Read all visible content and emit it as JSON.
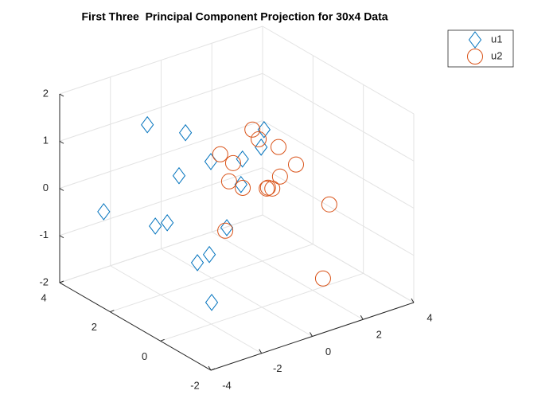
{
  "chart_data": {
    "type": "scatter3",
    "title": "First Three  Principal Component Projection for 30x4 Data",
    "xlim": [
      -4,
      4
    ],
    "xticks": [
      -4,
      -2,
      0,
      2,
      4
    ],
    "ylim": [
      -2,
      4
    ],
    "yticks": [
      -2,
      0,
      2,
      4
    ],
    "zlim": [
      -2,
      2
    ],
    "zticks": [
      -2,
      -1,
      0,
      1,
      2
    ],
    "grid": true,
    "legend_location": "northeastoutside",
    "series": [
      {
        "name": "u1",
        "color": "#0072BD",
        "marker": "diamond",
        "x": [
          -1.1,
          -0.49,
          -2.89,
          -1.49,
          -1.1,
          -0.2,
          0.59,
          -0.24,
          -0.32,
          -3.24,
          -2.8,
          -0.5,
          -1.73,
          -1.08,
          -2.07
        ],
        "y": [
          3.44,
          2.54,
          3.37,
          1.79,
          0.92,
          0.57,
          0.51,
          -0.21,
          0.51,
          0.97,
          0.94,
          0.89,
          0.82,
          1.0,
          -0.09
        ],
        "z": [
          1,
          1,
          -0.5,
          0.5,
          1,
          1,
          1.5,
          1.5,
          0.5,
          0,
          0,
          -0.5,
          -1,
          -1,
          -1.5
        ]
      },
      {
        "name": "u2",
        "color": "#D95319",
        "marker": "circle",
        "x": [
          0.3,
          0.04,
          1.22,
          -0.55,
          -0.61,
          1.92,
          -0.48,
          -0.42,
          1.0,
          0.22,
          0.29,
          0.15,
          2.05,
          -0.67,
          0.73
        ],
        "y": [
          0.68,
          0.17,
          0.57,
          1.1,
          0.53,
          0.58,
          0.82,
          0.34,
          0.29,
          -0.02,
          -0.12,
          -0.04,
          -0.61,
          0.78,
          -1.69
        ],
        "z": [
          1.5,
          1.5,
          1,
          1,
          1,
          0.5,
          0.5,
          0.5,
          0.5,
          0.5,
          0.5,
          0.5,
          0,
          -0.5,
          -1
        ]
      }
    ]
  }
}
